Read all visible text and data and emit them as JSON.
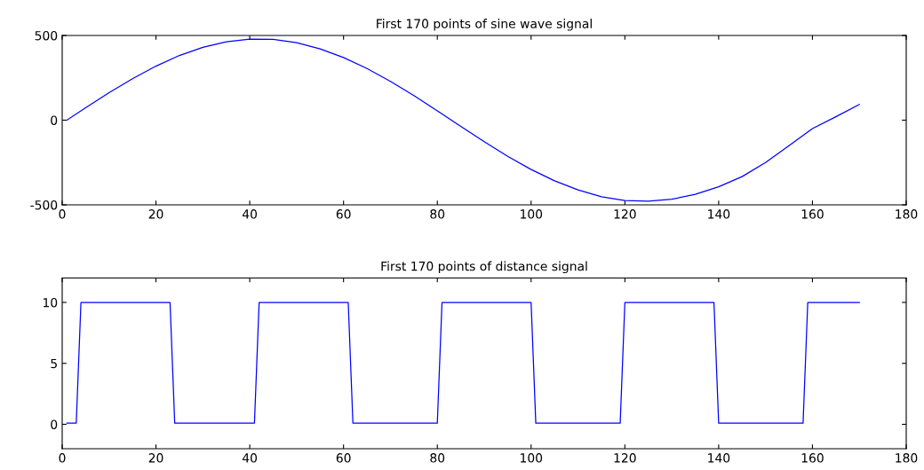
{
  "chart_data": [
    {
      "type": "line",
      "title": "First 170 points of sine wave signal",
      "x": [
        1,
        5,
        10,
        15,
        20,
        25,
        30,
        35,
        40,
        45,
        50,
        55,
        60,
        65,
        70,
        75,
        80,
        85,
        90,
        95,
        100,
        105,
        110,
        115,
        120,
        125,
        130,
        135,
        140,
        145,
        150,
        155,
        160,
        165,
        170
      ],
      "series": [
        {
          "color": "#0000ff",
          "values": [
            0,
            73,
            162,
            245,
            319,
            382,
            430,
            463,
            479,
            477,
            457,
            421,
            370,
            305,
            229,
            145,
            55,
            -37,
            -127,
            -213,
            -291,
            -358,
            -412,
            -452,
            -474,
            -478,
            -467,
            -438,
            -393,
            -333,
            -250,
            -150,
            -50,
            20,
            93
          ]
        }
      ],
      "xlim": [
        0,
        180
      ],
      "xticks": [
        0,
        20,
        40,
        60,
        80,
        100,
        120,
        140,
        160,
        180
      ],
      "ylim": [
        -500,
        500
      ],
      "yticks": [
        -500,
        0,
        500
      ],
      "grid": false
    },
    {
      "type": "line",
      "title": "First 170 points of distance signal",
      "x": [
        1,
        3,
        4,
        23,
        24,
        41,
        42,
        61,
        62,
        80,
        81,
        100,
        101,
        119,
        120,
        139,
        140,
        158,
        159,
        170
      ],
      "series": [
        {
          "color": "#0000ff",
          "values": [
            0.1,
            0.1,
            10,
            10,
            0.1,
            0.1,
            10,
            10,
            0.1,
            0.1,
            10,
            10,
            0.1,
            0.1,
            10,
            10,
            0.1,
            0.1,
            10,
            10
          ]
        }
      ],
      "xlim": [
        0,
        180
      ],
      "xticks": [
        0,
        20,
        40,
        60,
        80,
        100,
        120,
        140,
        160,
        180
      ],
      "ylim": [
        -2,
        12
      ],
      "yticks": [
        0,
        5,
        10
      ],
      "grid": false
    }
  ]
}
